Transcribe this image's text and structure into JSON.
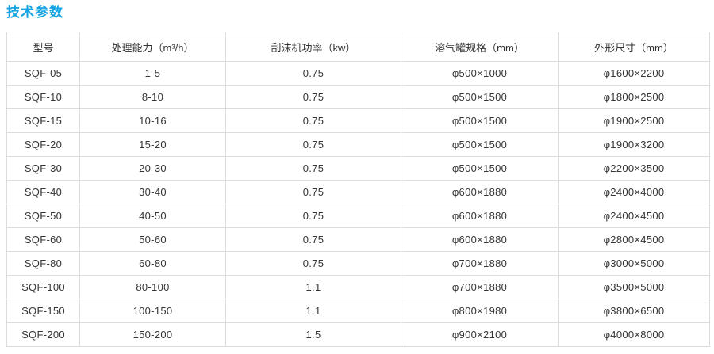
{
  "page": {
    "title": "技术参数",
    "title_color": "#14a3e2"
  },
  "table": {
    "columns": [
      "型号",
      "处理能力（m³/h）",
      "刮沫机功率（kw）",
      "溶气罐规格（mm）",
      "外形尺寸（mm）"
    ],
    "rows": [
      [
        "SQF-05",
        "1-5",
        "0.75",
        "φ500×1000",
        "φ1600×2200"
      ],
      [
        "SQF-10",
        "8-10",
        "0.75",
        "φ500×1500",
        "φ1800×2500"
      ],
      [
        "SQF-15",
        "10-16",
        "0.75",
        "φ500×1500",
        "φ1900×2500"
      ],
      [
        "SQF-20",
        "15-20",
        "0.75",
        "φ500×1500",
        "φ1900×3200"
      ],
      [
        "SQF-30",
        "20-30",
        "0.75",
        "φ500×1500",
        "φ2200×3500"
      ],
      [
        "SQF-40",
        "30-40",
        "0.75",
        "φ600×1880",
        "φ2400×4000"
      ],
      [
        "SQF-50",
        "40-50",
        "0.75",
        "φ600×1880",
        "φ2400×4500"
      ],
      [
        "SQF-60",
        "50-60",
        "0.75",
        "φ600×1880",
        "φ2800×4500"
      ],
      [
        "SQF-80",
        "60-80",
        "0.75",
        "φ700×1880",
        "φ3000×5000"
      ],
      [
        "SQF-100",
        "80-100",
        "1.1",
        "φ700×1880",
        "φ3500×5000"
      ],
      [
        "SQF-150",
        "100-150",
        "1.1",
        "φ800×1980",
        "φ3800×6500"
      ],
      [
        "SQF-200",
        "150-200",
        "1.5",
        "φ900×2100",
        "φ4000×8000"
      ]
    ]
  }
}
